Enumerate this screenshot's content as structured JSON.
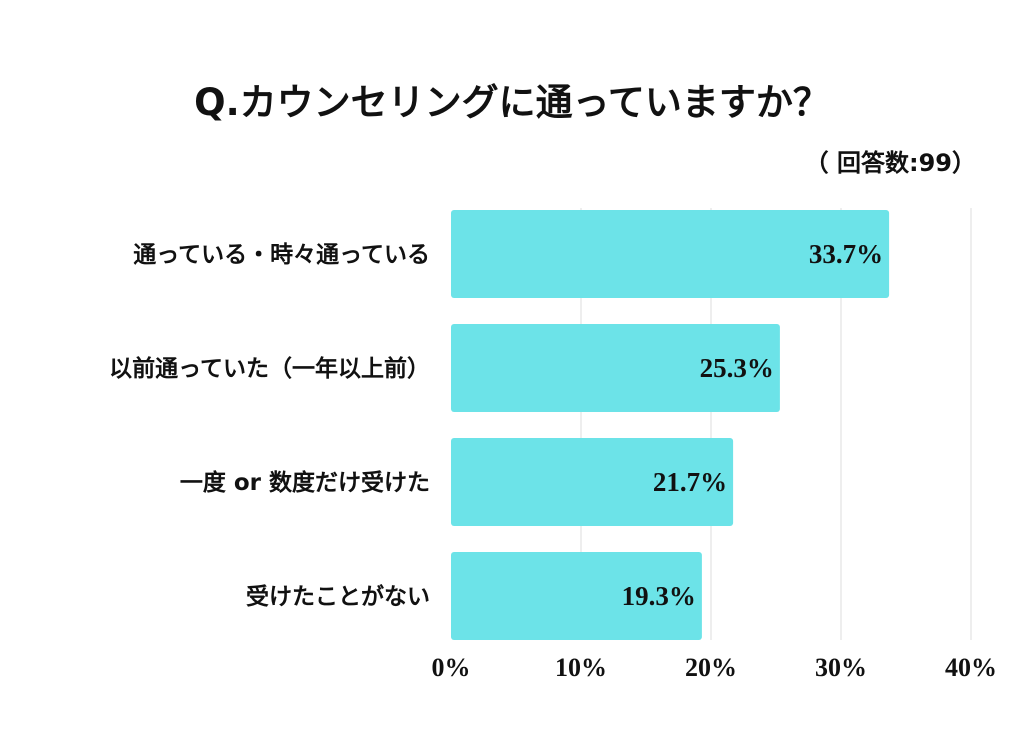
{
  "chart_data": {
    "type": "bar",
    "orientation": "horizontal",
    "title": "Q.カウンセリングに通っていますか？",
    "subtitle": "（ 回答数:99）",
    "categories": [
      "通っている・時々通っている",
      "以前通っていた（一年以上前）",
      "一度 or 数度だけ受けた",
      "受けたことがない"
    ],
    "values": [
      33.7,
      25.3,
      21.7,
      19.3
    ],
    "value_labels": [
      "33.7%",
      "25.3%",
      "21.7%",
      "19.3%"
    ],
    "xlim": [
      0,
      40
    ],
    "xticks": [
      0,
      10,
      20,
      30,
      40
    ],
    "xtick_labels": [
      "0%",
      "10%",
      "20%",
      "30%",
      "40%"
    ],
    "xlabel": "",
    "ylabel": "",
    "grid": true,
    "bar_color": "#6ce3e8",
    "grid_color": "#dddddd"
  }
}
